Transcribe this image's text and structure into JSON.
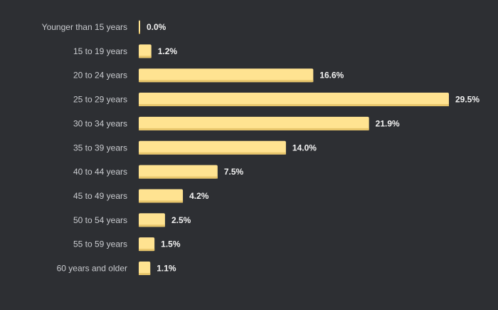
{
  "chart_data": {
    "type": "bar",
    "orientation": "horizontal",
    "categories": [
      "Younger than 15 years",
      "15 to 19 years",
      "20 to 24 years",
      "25 to 29 years",
      "30 to 34 years",
      "35 to 39 years",
      "40 to 44 years",
      "45 to 49 years",
      "50 to 54 years",
      "55 to 59 years",
      "60 years and older"
    ],
    "values": [
      0.0,
      1.2,
      16.6,
      29.5,
      21.9,
      14.0,
      7.5,
      4.2,
      2.5,
      1.5,
      1.1
    ],
    "value_labels": [
      "0.0%",
      "1.2%",
      "16.6%",
      "29.5%",
      "21.9%",
      "14.0%",
      "7.5%",
      "4.2%",
      "2.5%",
      "1.5%",
      "1.1%"
    ],
    "title": "",
    "xlabel": "",
    "ylabel": "",
    "xlim": [
      0,
      29.5
    ],
    "grid": false,
    "legend": "none",
    "colors": {
      "background": "#2d2f33",
      "bar": "#ffe391",
      "bar_shadow": "#e8c66c",
      "category_text": "#c9cbcf",
      "value_text": "#f2f2f2"
    }
  }
}
